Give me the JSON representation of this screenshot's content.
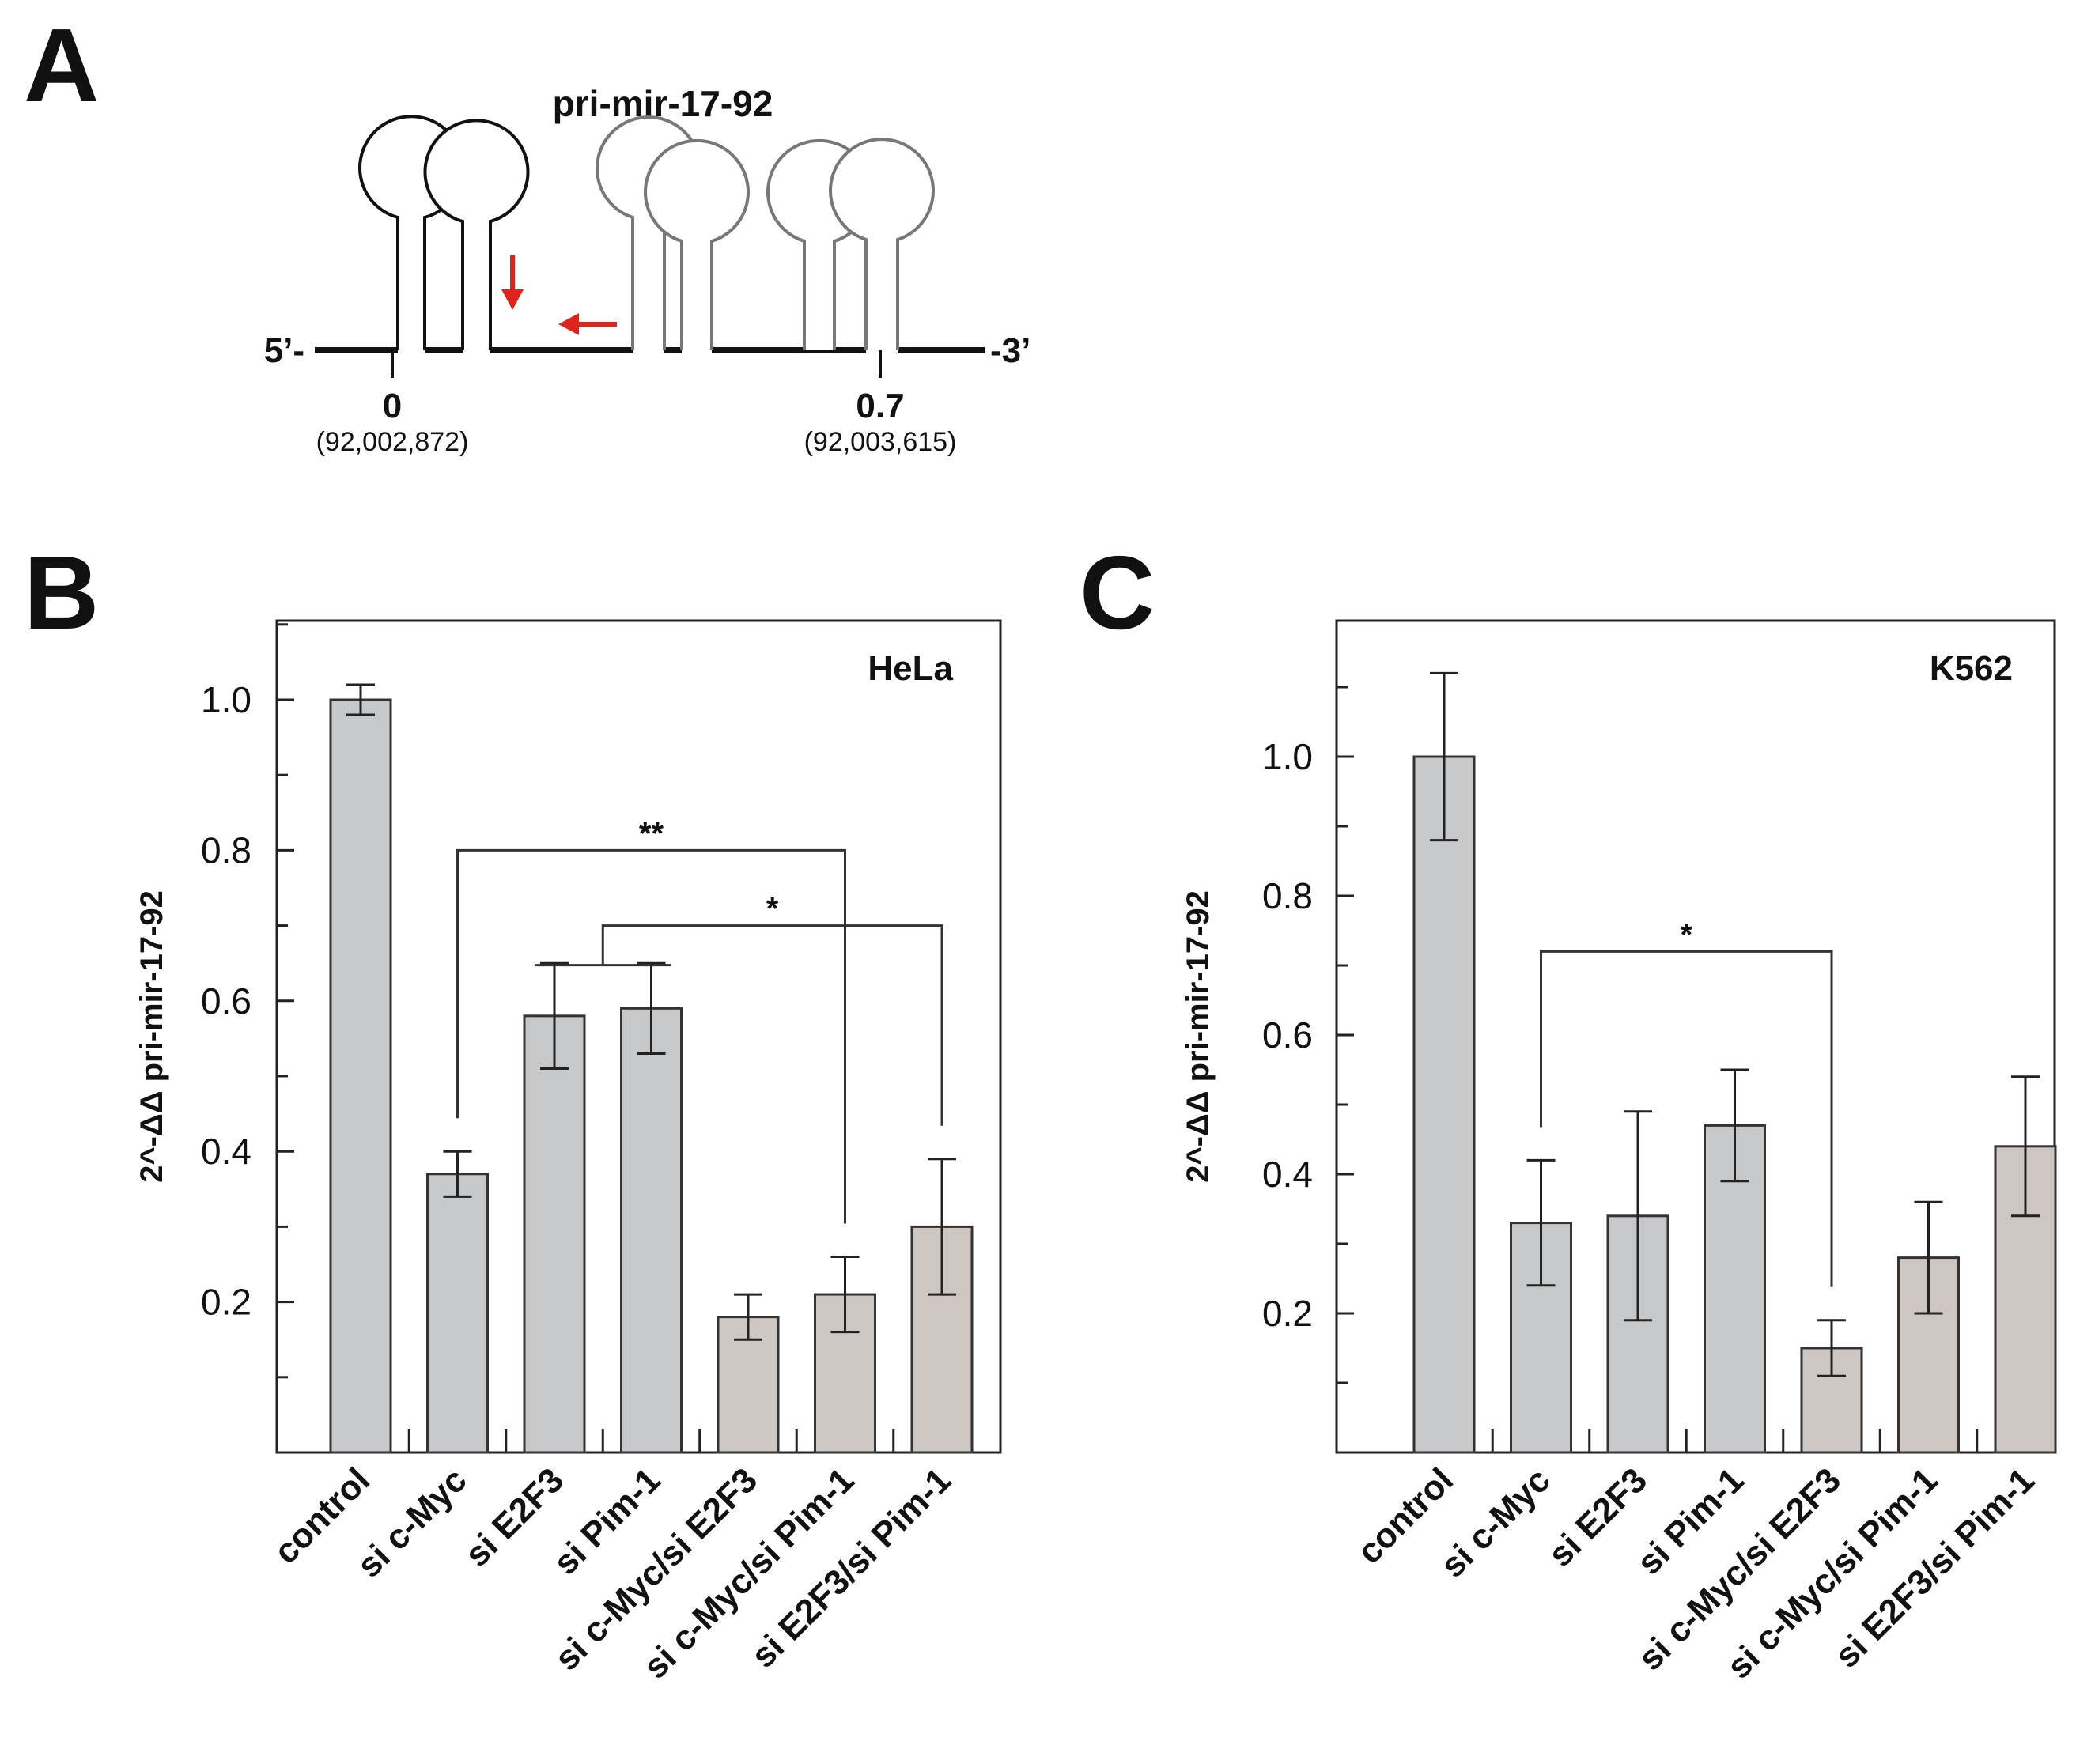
{
  "panel_a": {
    "letter": "A",
    "title": "pri-mir-17-92",
    "end5": "5’-",
    "end3": "-3’",
    "left_pos": "0",
    "left_coord": "(92,002,872)",
    "right_pos": "0.7",
    "right_coord": "(92,003,615)"
  },
  "colors": {
    "bar_fill": "#c6c8ca",
    "bar_fill_combo": "#cdc6c3",
    "arrow": "#e0241b",
    "axis": "#222222"
  },
  "chart_data": [
    {
      "panel": "B",
      "type": "bar",
      "label": "HeLa",
      "ylabel": "2^-ΔΔ pri-mir-17-92",
      "ylim": [
        0,
        1.1
      ],
      "yticks": [
        0.2,
        0.4,
        0.6,
        0.8,
        1.0
      ],
      "ytick_labels": [
        "0.2",
        "0.4",
        "0.6",
        "0.8",
        "1.0"
      ],
      "categories": [
        "control",
        "si c-Myc",
        "si E2F3",
        "si Pim-1",
        "si c-Myc/si E2F3",
        "si c-Myc/si Pim-1",
        "si E2F3/si Pim-1"
      ],
      "values": [
        1.0,
        0.37,
        0.58,
        0.59,
        0.18,
        0.21,
        0.3
      ],
      "errors": [
        0.02,
        0.03,
        0.07,
        0.06,
        0.03,
        0.05,
        0.09
      ],
      "combo": [
        false,
        false,
        false,
        false,
        true,
        true,
        true
      ],
      "significance": [
        {
          "from": [
            1
          ],
          "to": 5,
          "label": "**",
          "level": 0.8
        },
        {
          "from": [
            2,
            3
          ],
          "to": 6,
          "label": "*",
          "level": 0.7
        }
      ]
    },
    {
      "panel": "C",
      "type": "bar",
      "label": "K562",
      "ylabel": "2^-ΔΔ pri-mir-17-92",
      "ylim": [
        0,
        1.2
      ],
      "yticks": [
        0.2,
        0.4,
        0.6,
        0.8,
        1.0
      ],
      "ytick_labels": [
        "0.2",
        "0.4",
        "0.6",
        "0.8",
        "1.0"
      ],
      "categories": [
        "control",
        "si c-Myc",
        "si E2F3",
        "si Pim-1",
        "si c-Myc/si E2F3",
        "si c-Myc/si Pim-1",
        "si E2F3/si Pim-1"
      ],
      "values": [
        1.0,
        0.33,
        0.34,
        0.47,
        0.15,
        0.28,
        0.44
      ],
      "errors": [
        0.12,
        0.09,
        0.15,
        0.08,
        0.04,
        0.08,
        0.1
      ],
      "combo": [
        false,
        false,
        false,
        false,
        true,
        true,
        true
      ],
      "significance": [
        {
          "from": [
            1
          ],
          "to": 4,
          "label": "*",
          "level": 0.72
        }
      ]
    }
  ]
}
